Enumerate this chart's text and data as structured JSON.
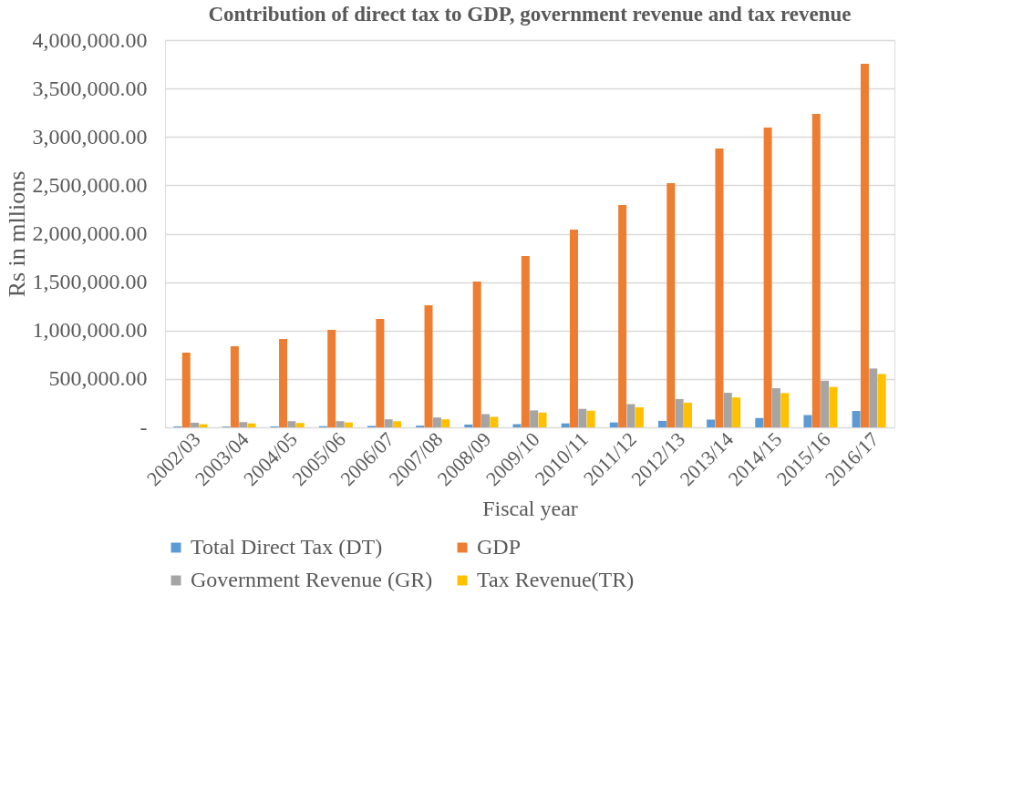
{
  "chart_data": {
    "type": "bar",
    "title": "Contribution of direct tax to GDP, government revenue and tax revenue",
    "xlabel": "Fiscal year",
    "ylabel": "Rs in mllions",
    "categories": [
      "2002/03",
      "2003/04",
      "2004/05",
      "2005/06",
      "2006/07",
      "2007/08",
      "2008/09",
      "2009/10",
      "2010/11",
      "2011/12",
      "2012/13",
      "2013/14",
      "2014/15",
      "2015/16",
      "2016/17"
    ],
    "series": [
      {
        "name": "Total Direct Tax (DT)",
        "color": "#5b9bd5",
        "values": [
          10000,
          8000,
          10000,
          12000,
          15000,
          18000,
          29000,
          33000,
          41000,
          51000,
          67000,
          80000,
          96000,
          127000,
          169000
        ]
      },
      {
        "name": "GDP",
        "color": "#ed7d31",
        "values": [
          772000,
          838000,
          913000,
          1007000,
          1120000,
          1261000,
          1506000,
          1769000,
          2042000,
          2296000,
          2522000,
          2880000,
          3096000,
          3238000,
          3755000
        ]
      },
      {
        "name": "Government Revenue (GR)",
        "color": "#a5a5a5",
        "values": [
          48000,
          54000,
          64000,
          64000,
          83000,
          102000,
          137000,
          175000,
          191000,
          239000,
          293000,
          357000,
          404000,
          481000,
          608000
        ]
      },
      {
        "name": "Tax Revenue(TR)",
        "color": "#ffc000",
        "values": [
          32000,
          41000,
          45000,
          51000,
          64000,
          83000,
          108000,
          153000,
          172000,
          207000,
          255000,
          309000,
          354000,
          417000,
          551000
        ]
      }
    ],
    "ylim": [
      0,
      4000000
    ],
    "yticks": [
      {
        "value": 0,
        "label": "-"
      },
      {
        "value": 500000,
        "label": "500,000.00"
      },
      {
        "value": 1000000,
        "label": "1,000,000.00"
      },
      {
        "value": 1500000,
        "label": "1,500,000.00"
      },
      {
        "value": 2000000,
        "label": "2,000,000.00"
      },
      {
        "value": 2500000,
        "label": "2,500,000.00"
      },
      {
        "value": 3000000,
        "label": "3,000,000.00"
      },
      {
        "value": 3500000,
        "label": "3,500,000.00"
      },
      {
        "value": 4000000,
        "label": "4,000,000.00"
      }
    ],
    "grid": "y",
    "legend": "bottom"
  }
}
